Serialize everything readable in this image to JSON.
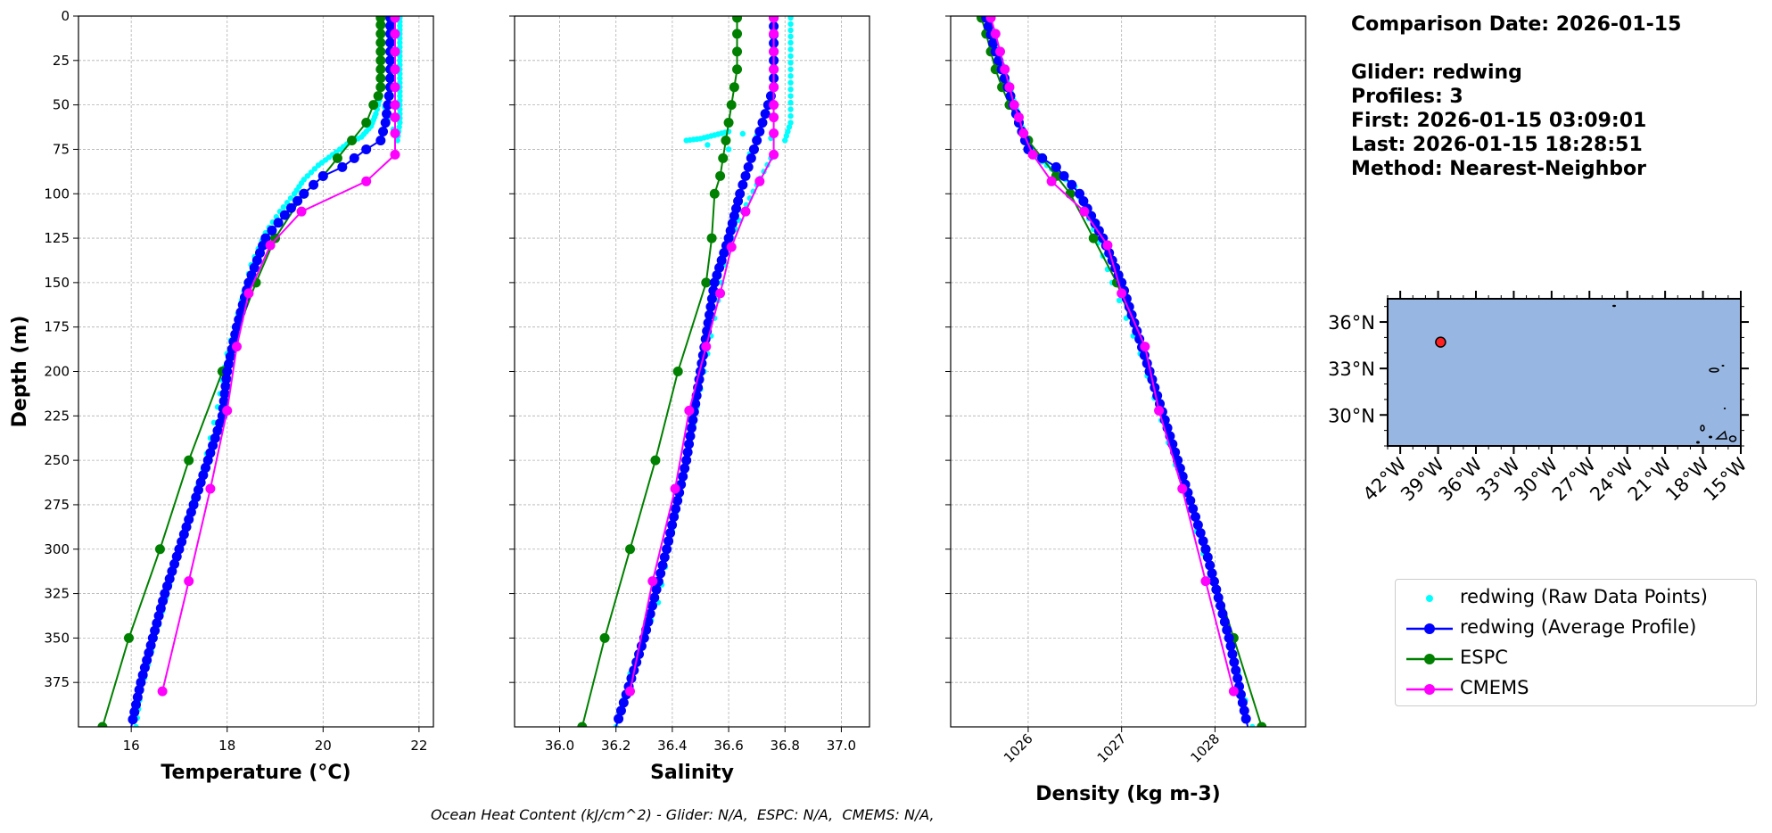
{
  "info": {
    "comparison_date": "Comparison Date: 2026-01-15",
    "glider": "Glider: redwing",
    "profiles": "Profiles: 3",
    "first": "First: 2026-01-15 03:09:01",
    "last": "Last: 2026-01-15 18:28:51",
    "method": "Method: Nearest-Neighbor"
  },
  "footer": "Ocean Heat Content (kJ/cm^2) - Glider: N/A,  ESPC: N/A,  CMEMS: N/A,",
  "legend": [
    {
      "label": "redwing (Raw Data Points)",
      "color": "#00ffff",
      "style": "dot"
    },
    {
      "label": "redwing (Average Profile)",
      "color": "#0000ff",
      "style": "line-marker"
    },
    {
      "label": "ESPC",
      "color": "#008000",
      "style": "line-marker"
    },
    {
      "label": "CMEMS",
      "color": "#ff00ff",
      "style": "line-marker"
    }
  ],
  "chart_data": [
    {
      "type": "line",
      "xlabel": "Temperature (°C)",
      "ylabel": "Depth (m)",
      "xlim": [
        14.9,
        22.3
      ],
      "ylim": [
        400,
        0
      ],
      "xticks": [
        16,
        18,
        20,
        22
      ],
      "yticks": [
        0,
        25,
        50,
        75,
        100,
        125,
        150,
        175,
        200,
        225,
        250,
        275,
        300,
        325,
        350,
        375
      ],
      "grid": true,
      "series": [
        {
          "name": "ESPC",
          "color": "#008000",
          "points": [
            [
              21.2,
              1
            ],
            [
              21.2,
              5
            ],
            [
              21.2,
              10
            ],
            [
              21.2,
              15
            ],
            [
              21.2,
              20
            ],
            [
              21.2,
              25
            ],
            [
              21.2,
              30
            ],
            [
              21.2,
              35
            ],
            [
              21.2,
              40
            ],
            [
              21.15,
              45
            ],
            [
              21.05,
              50
            ],
            [
              20.9,
              60
            ],
            [
              20.6,
              70
            ],
            [
              20.3,
              80
            ],
            [
              20.0,
              90
            ],
            [
              19.6,
              100
            ],
            [
              19.0,
              125
            ],
            [
              18.6,
              150
            ],
            [
              17.9,
              200
            ],
            [
              17.2,
              250
            ],
            [
              16.6,
              300
            ],
            [
              15.95,
              350
            ],
            [
              15.4,
              400
            ]
          ]
        },
        {
          "name": "redwing (Average Profile)",
          "color": "#0000ff",
          "points": [
            [
              21.4,
              1
            ],
            [
              21.4,
              10
            ],
            [
              21.4,
              20
            ],
            [
              21.4,
              30
            ],
            [
              21.4,
              40
            ],
            [
              21.35,
              50
            ],
            [
              21.3,
              60
            ],
            [
              21.2,
              70
            ],
            [
              20.9,
              75
            ],
            [
              20.4,
              85
            ],
            [
              20.0,
              90
            ],
            [
              19.6,
              100
            ],
            [
              19.2,
              112
            ],
            [
              18.8,
              125
            ],
            [
              18.45,
              150
            ],
            [
              18.2,
              175
            ],
            [
              18.0,
              200
            ],
            [
              17.9,
              225
            ],
            [
              17.6,
              250
            ],
            [
              17.3,
              275
            ],
            [
              17.0,
              300
            ],
            [
              16.7,
              325
            ],
            [
              16.45,
              350
            ],
            [
              16.2,
              375
            ],
            [
              16.0,
              400
            ]
          ]
        },
        {
          "name": "CMEMS",
          "color": "#ff00ff",
          "points": [
            [
              21.5,
              1
            ],
            [
              21.5,
              10
            ],
            [
              21.5,
              20
            ],
            [
              21.5,
              30
            ],
            [
              21.5,
              40
            ],
            [
              21.5,
              50
            ],
            [
              21.5,
              57
            ],
            [
              21.5,
              66
            ],
            [
              21.5,
              78
            ],
            [
              20.9,
              93
            ],
            [
              19.55,
              110
            ],
            [
              18.9,
              129
            ],
            [
              18.45,
              156
            ],
            [
              18.2,
              186
            ],
            [
              18.0,
              222
            ],
            [
              17.65,
              266
            ],
            [
              17.2,
              318
            ],
            [
              16.65,
              380
            ]
          ]
        },
        {
          "name": "redwing (Raw Data Points)",
          "color": "#00ffff",
          "points": [
            [
              21.6,
              1
            ],
            [
              21.6,
              10
            ],
            [
              21.6,
              20
            ],
            [
              21.6,
              30
            ],
            [
              21.6,
              40
            ],
            [
              21.6,
              50
            ],
            [
              21.6,
              60
            ],
            [
              21.55,
              70
            ],
            [
              21.2,
              45
            ],
            [
              21.1,
              55
            ],
            [
              21.0,
              62
            ],
            [
              20.8,
              68
            ],
            [
              20.5,
              72
            ],
            [
              20.2,
              78
            ],
            [
              19.9,
              84
            ],
            [
              19.6,
              92
            ],
            [
              19.4,
              100
            ],
            [
              19.1,
              110
            ],
            [
              18.8,
              122
            ],
            [
              18.5,
              140
            ],
            [
              18.3,
              160
            ],
            [
              18.0,
              190
            ],
            [
              17.8,
              220
            ],
            [
              17.5,
              255
            ],
            [
              17.1,
              290
            ],
            [
              16.8,
              320
            ],
            [
              16.5,
              350
            ],
            [
              16.2,
              380
            ],
            [
              16.1,
              400
            ]
          ]
        }
      ]
    },
    {
      "type": "line",
      "xlabel": "Salinity",
      "xlim": [
        35.84,
        37.1
      ],
      "ylim": [
        400,
        0
      ],
      "xticks": [
        "36.0",
        "36.2",
        "36.4",
        "36.6",
        "36.8",
        "37.0"
      ],
      "grid": true,
      "series": [
        {
          "name": "ESPC",
          "color": "#008000",
          "points": [
            [
              36.63,
              1
            ],
            [
              36.63,
              10
            ],
            [
              36.63,
              20
            ],
            [
              36.63,
              30
            ],
            [
              36.62,
              40
            ],
            [
              36.61,
              50
            ],
            [
              36.6,
              60
            ],
            [
              36.59,
              70
            ],
            [
              36.58,
              80
            ],
            [
              36.57,
              90
            ],
            [
              36.55,
              100
            ],
            [
              36.54,
              125
            ],
            [
              36.52,
              150
            ],
            [
              36.42,
              200
            ],
            [
              36.34,
              250
            ],
            [
              36.25,
              300
            ],
            [
              36.16,
              350
            ],
            [
              36.08,
              400
            ]
          ]
        },
        {
          "name": "redwing (Average Profile)",
          "color": "#0000ff",
          "points": [
            [
              36.76,
              1
            ],
            [
              36.76,
              20
            ],
            [
              36.76,
              40
            ],
            [
              36.74,
              50
            ],
            [
              36.72,
              60
            ],
            [
              36.7,
              70
            ],
            [
              36.67,
              85
            ],
            [
              36.64,
              100
            ],
            [
              36.6,
              125
            ],
            [
              36.55,
              150
            ],
            [
              36.5,
              200
            ],
            [
              36.45,
              250
            ],
            [
              36.38,
              300
            ],
            [
              36.3,
              350
            ],
            [
              36.2,
              400
            ]
          ]
        },
        {
          "name": "CMEMS",
          "color": "#ff00ff",
          "points": [
            [
              36.76,
              1
            ],
            [
              36.76,
              10
            ],
            [
              36.76,
              20
            ],
            [
              36.76,
              30
            ],
            [
              36.76,
              40
            ],
            [
              36.76,
              50
            ],
            [
              36.76,
              57
            ],
            [
              36.76,
              66
            ],
            [
              36.76,
              78
            ],
            [
              36.71,
              93
            ],
            [
              36.66,
              110
            ],
            [
              36.61,
              130
            ],
            [
              36.57,
              156
            ],
            [
              36.52,
              186
            ],
            [
              36.46,
              222
            ],
            [
              36.41,
              266
            ],
            [
              36.33,
              318
            ],
            [
              36.25,
              380
            ]
          ]
        },
        {
          "name": "redwing (Raw Data Points)",
          "color": "#00ffff",
          "points": [
            [
              36.82,
              1
            ],
            [
              36.82,
              15
            ],
            [
              36.82,
              30
            ],
            [
              36.82,
              45
            ],
            [
              36.82,
              60
            ],
            [
              36.8,
              70
            ],
            [
              36.6,
              65
            ],
            [
              36.55,
              67
            ],
            [
              36.5,
              69
            ],
            [
              36.45,
              70
            ],
            [
              36.75,
              80
            ],
            [
              36.7,
              95
            ],
            [
              36.65,
              110
            ],
            [
              36.6,
              130
            ],
            [
              36.55,
              170
            ],
            [
              36.5,
              210
            ],
            [
              36.45,
              250
            ],
            [
              36.4,
              290
            ],
            [
              36.35,
              330
            ],
            [
              36.25,
              370
            ],
            [
              36.2,
              400
            ]
          ]
        }
      ]
    },
    {
      "type": "line",
      "xlabel": "Density (kg m-3)",
      "xlim": [
        1025.17,
        1028.97
      ],
      "ylim": [
        400,
        0
      ],
      "xticks": [
        "1026",
        "1027",
        "1028"
      ],
      "grid": true,
      "series": [
        {
          "name": "ESPC",
          "color": "#008000",
          "points": [
            [
              1025.5,
              1
            ],
            [
              1025.55,
              10
            ],
            [
              1025.6,
              20
            ],
            [
              1025.65,
              30
            ],
            [
              1025.72,
              40
            ],
            [
              1025.8,
              50
            ],
            [
              1025.9,
              60
            ],
            [
              1026.0,
              70
            ],
            [
              1026.15,
              80
            ],
            [
              1026.3,
              90
            ],
            [
              1026.45,
              100
            ],
            [
              1026.7,
              125
            ],
            [
              1026.95,
              150
            ],
            [
              1027.3,
              200
            ],
            [
              1027.6,
              250
            ],
            [
              1027.9,
              300
            ],
            [
              1028.2,
              350
            ],
            [
              1028.5,
              400
            ]
          ]
        },
        {
          "name": "redwing (Average Profile)",
          "color": "#0000ff",
          "points": [
            [
              1025.55,
              1
            ],
            [
              1025.65,
              20
            ],
            [
              1025.78,
              40
            ],
            [
              1025.9,
              60
            ],
            [
              1026.0,
              75
            ],
            [
              1026.3,
              85
            ],
            [
              1026.55,
              100
            ],
            [
              1026.8,
              125
            ],
            [
              1027.0,
              150
            ],
            [
              1027.3,
              200
            ],
            [
              1027.6,
              250
            ],
            [
              1027.9,
              300
            ],
            [
              1028.15,
              350
            ],
            [
              1028.35,
              400
            ]
          ]
        },
        {
          "name": "CMEMS",
          "color": "#ff00ff",
          "points": [
            [
              1025.6,
              1
            ],
            [
              1025.65,
              10
            ],
            [
              1025.7,
              20
            ],
            [
              1025.75,
              30
            ],
            [
              1025.8,
              40
            ],
            [
              1025.85,
              50
            ],
            [
              1025.9,
              57
            ],
            [
              1025.95,
              66
            ],
            [
              1026.05,
              78
            ],
            [
              1026.25,
              93
            ],
            [
              1026.6,
              110
            ],
            [
              1026.85,
              129
            ],
            [
              1027.0,
              156
            ],
            [
              1027.25,
              186
            ],
            [
              1027.4,
              222
            ],
            [
              1027.65,
              266
            ],
            [
              1027.9,
              318
            ],
            [
              1028.2,
              380
            ]
          ]
        },
        {
          "name": "redwing (Raw Data Points)",
          "color": "#00ffff",
          "points": [
            [
              1025.58,
              1
            ],
            [
              1025.62,
              10
            ],
            [
              1025.68,
              20
            ],
            [
              1025.74,
              30
            ],
            [
              1025.8,
              40
            ],
            [
              1025.86,
              50
            ],
            [
              1025.92,
              60
            ],
            [
              1025.98,
              70
            ],
            [
              1026.1,
              80
            ],
            [
              1026.3,
              88
            ],
            [
              1026.5,
              96
            ],
            [
              1026.7,
              120
            ],
            [
              1026.9,
              150
            ],
            [
              1027.2,
              190
            ],
            [
              1027.5,
              240
            ],
            [
              1027.8,
              290
            ],
            [
              1028.1,
              340
            ],
            [
              1028.4,
              400
            ]
          ]
        }
      ]
    }
  ],
  "map": {
    "lat_ticks": [
      "36°N",
      "33°N",
      "30°N"
    ],
    "lon_ticks": [
      "42°W",
      "39°W",
      "36°W",
      "33°W",
      "30°W",
      "27°W",
      "24°W",
      "21°W",
      "18°W",
      "15°W"
    ],
    "extent": {
      "lon": [
        -43.0,
        -15.0
      ],
      "lat": [
        28.0,
        37.5
      ]
    },
    "lat_values": [
      36,
      33,
      30
    ],
    "lon_values": [
      -42,
      -39,
      -36,
      -33,
      -30,
      -27,
      -24,
      -21,
      -18,
      -15
    ],
    "ocean_color": "#97b6e1",
    "glider_position": {
      "lon": -38.8,
      "lat": 34.7
    }
  }
}
